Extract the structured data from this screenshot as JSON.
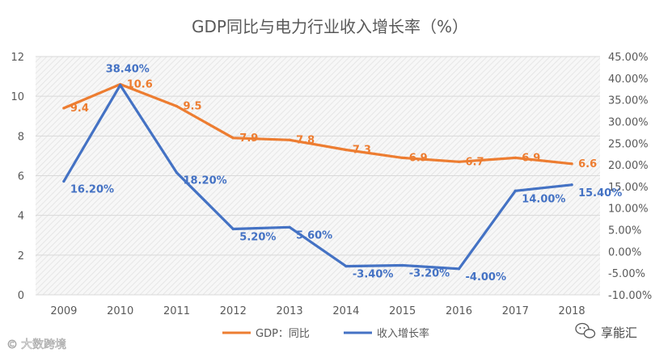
{
  "chart_data": {
    "type": "line",
    "title": "GDP同比与电力行业收入增长率（%）",
    "categories": [
      "2009",
      "2010",
      "2011",
      "2012",
      "2013",
      "2014",
      "2015",
      "2016",
      "2017",
      "2018"
    ],
    "y_left": {
      "min": 0,
      "max": 12,
      "ticks": [
        "0",
        "2",
        "4",
        "6",
        "8",
        "10",
        "12"
      ]
    },
    "y_right": {
      "min": -10,
      "max": 45,
      "ticks": [
        "-10.00%",
        "-5.00%",
        "0.00%",
        "5.00%",
        "10.00%",
        "15.00%",
        "20.00%",
        "25.00%",
        "30.00%",
        "35.00%",
        "40.00%",
        "45.00%"
      ]
    },
    "grid": true,
    "legend_position": "bottom",
    "series": [
      {
        "name": "GDP：同比",
        "axis": "left",
        "color": "#ED7D31",
        "values": [
          9.4,
          10.6,
          9.5,
          7.9,
          7.8,
          7.3,
          6.9,
          6.7,
          6.9,
          6.6
        ],
        "labels": [
          "9.4",
          "10.6",
          "9.5",
          "7.9",
          "7.8",
          "7.3",
          "6.9",
          "6.7",
          "6.9",
          "6.6"
        ]
      },
      {
        "name": "收入增长率",
        "axis": "right",
        "color": "#4472C4",
        "values": [
          16.2,
          38.4,
          18.2,
          5.2,
          5.6,
          -3.4,
          -3.2,
          -4.0,
          14.0,
          15.4
        ],
        "labels": [
          "16.20%",
          "38.40%",
          "18.20%",
          "5.20%",
          "5.60%",
          "-3.40%",
          "-3.20%",
          "-4.00%",
          "14.00%",
          "15.40%"
        ]
      }
    ]
  },
  "watermarks": {
    "left": "大数跨境",
    "right": "享能汇"
  }
}
